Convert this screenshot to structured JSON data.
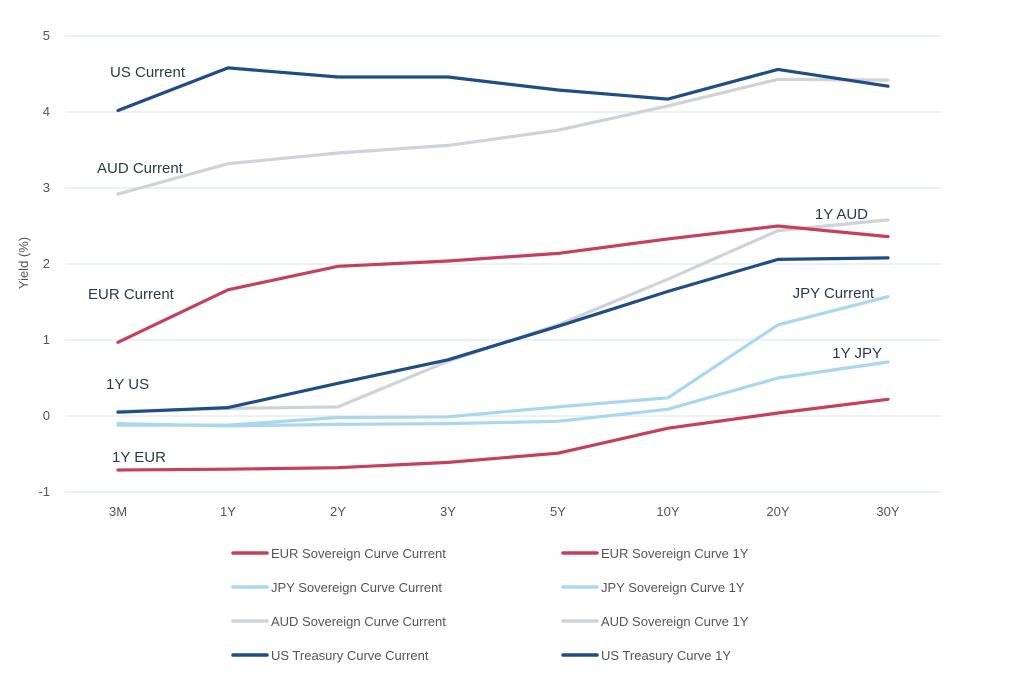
{
  "chart_data": {
    "type": "line",
    "title": "",
    "xlabel": "",
    "ylabel": "Yield (%)",
    "ylim": [
      -1,
      5
    ],
    "yticks": [
      "5",
      "4",
      "3",
      "2",
      "1",
      "0",
      "-1"
    ],
    "categories": [
      "3M",
      "1Y",
      "2Y",
      "3Y",
      "5Y",
      "10Y",
      "20Y",
      "30Y"
    ],
    "grid": true,
    "legend": "bottom",
    "series": [
      {
        "name": "AUD Sovereign Curve Current",
        "color": "#cfd3d8",
        "values": [
          2.92,
          3.32,
          3.46,
          3.56,
          3.76,
          4.08,
          4.43,
          4.42
        ]
      },
      {
        "name": "AUD Sovereign Curve 1Y",
        "color": "#cfd3d8",
        "values": [
          0.06,
          0.1,
          0.12,
          0.72,
          1.2,
          1.8,
          2.44,
          2.58
        ]
      },
      {
        "name": "JPY Sovereign Curve Current",
        "color": "#a9d7ef",
        "values": [
          -0.12,
          -0.12,
          -0.02,
          -0.01,
          0.12,
          0.24,
          1.2,
          1.57
        ]
      },
      {
        "name": "JPY Sovereign Curve 1Y",
        "color": "#a9d7ef",
        "values": [
          -0.1,
          -0.13,
          -0.11,
          -0.1,
          -0.07,
          0.09,
          0.5,
          0.71
        ]
      },
      {
        "name": "EUR Sovereign Curve Current",
        "color": "#c5405a",
        "values": [
          0.97,
          1.66,
          1.97,
          2.04,
          2.14,
          2.33,
          2.5,
          2.36
        ]
      },
      {
        "name": "EUR Sovereign Curve 1Y",
        "color": "#c5405a",
        "values": [
          -0.71,
          -0.7,
          -0.68,
          -0.61,
          -0.49,
          -0.16,
          0.04,
          0.22
        ]
      },
      {
        "name": "US Treasury  Curve Current",
        "color": "#1f4e85",
        "values": [
          4.02,
          4.58,
          4.46,
          4.46,
          4.29,
          4.17,
          4.56,
          4.34
        ]
      },
      {
        "name": "US Treasury Curve 1Y",
        "color": "#1f4e85",
        "values": [
          0.05,
          0.11,
          0.43,
          0.74,
          1.18,
          1.64,
          2.06,
          2.08
        ]
      }
    ],
    "legend_items": [
      {
        "label": "EUR Sovereign Curve Current",
        "color": "#c5405a"
      },
      {
        "label": "EUR Sovereign Curve 1Y",
        "color": "#c5405a"
      },
      {
        "label": "JPY Sovereign Curve Current",
        "color": "#a9d7ef"
      },
      {
        "label": "JPY Sovereign Curve 1Y",
        "color": "#a9d7ef"
      },
      {
        "label": "AUD Sovereign Curve Current",
        "color": "#cfd3d8"
      },
      {
        "label": "AUD Sovereign Curve 1Y",
        "color": "#cfd3d8"
      },
      {
        "label": "US Treasury  Curve Current",
        "color": "#1f4e85"
      },
      {
        "label": "US Treasury Curve 1Y",
        "color": "#1f4e85"
      }
    ],
    "annotations": [
      {
        "text": "US Current",
        "series": "US Treasury  Curve Current"
      },
      {
        "text": "AUD Current",
        "series": "AUD Sovereign Curve Current"
      },
      {
        "text": "EUR Current",
        "series": "EUR Sovereign Curve Current"
      },
      {
        "text": "1Y US",
        "series": "US Treasury Curve 1Y"
      },
      {
        "text": "1Y EUR",
        "series": "EUR Sovereign Curve 1Y"
      },
      {
        "text": "1Y AUD",
        "series": "AUD Sovereign Curve 1Y"
      },
      {
        "text": "JPY Current",
        "series": "JPY Sovereign Curve Current"
      },
      {
        "text": "1Y JPY",
        "series": "JPY Sovereign Curve 1Y"
      }
    ]
  }
}
